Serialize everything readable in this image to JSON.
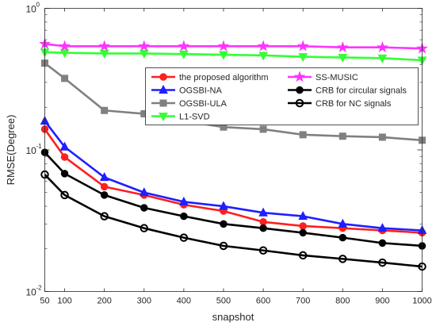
{
  "chart_data": {
    "type": "line",
    "title": "",
    "xlabel": "snapshot",
    "ylabel": "RMSE(Degree)",
    "yscale": "log",
    "xlim": [
      50,
      1000
    ],
    "ylim": [
      0.01,
      1
    ],
    "grid": false,
    "legend_placement": "upper-right",
    "x": [
      50,
      100,
      200,
      300,
      400,
      500,
      600,
      700,
      800,
      900,
      1000
    ],
    "x_ticks": [
      "50",
      "100",
      "200",
      "300",
      "400",
      "500",
      "600",
      "700",
      "800",
      "900",
      "1000"
    ],
    "y_ticks": [
      {
        "value": 0.01,
        "base": "10",
        "exp": "-2"
      },
      {
        "value": 0.1,
        "base": "10",
        "exp": "-1"
      },
      {
        "value": 1,
        "base": "10",
        "exp": "0"
      }
    ],
    "series": [
      {
        "name": "the proposed algorithm",
        "color": "#ff1f1f",
        "marker": "circle-filled",
        "values": [
          0.14,
          0.089,
          0.055,
          0.048,
          0.041,
          0.037,
          0.031,
          0.029,
          0.028,
          0.027,
          0.026
        ]
      },
      {
        "name": "SS-MUSIC",
        "color": "#ff33ff",
        "marker": "star",
        "values": [
          0.56,
          0.54,
          0.54,
          0.54,
          0.54,
          0.54,
          0.54,
          0.54,
          0.53,
          0.53,
          0.52
        ]
      },
      {
        "name": "OGSBI-NA",
        "color": "#1f1fff",
        "marker": "triangle-up",
        "values": [
          0.16,
          0.105,
          0.064,
          0.05,
          0.043,
          0.04,
          0.036,
          0.034,
          0.03,
          0.028,
          0.027
        ]
      },
      {
        "name": "CRB for circular signals",
        "color": "#000000",
        "marker": "circle-filled",
        "values": [
          0.096,
          0.068,
          0.048,
          0.039,
          0.034,
          0.03,
          0.028,
          0.026,
          0.024,
          0.022,
          0.021
        ]
      },
      {
        "name": "OGSBI-ULA",
        "color": "#808080",
        "marker": "square",
        "values": [
          0.41,
          0.32,
          0.19,
          0.18,
          0.16,
          0.145,
          0.14,
          0.128,
          0.125,
          0.123,
          0.117
        ]
      },
      {
        "name": "CRB for NC signals",
        "color": "#000000",
        "marker": "circle-open",
        "values": [
          0.067,
          0.048,
          0.034,
          0.028,
          0.024,
          0.021,
          0.0195,
          0.018,
          0.017,
          0.016,
          0.015
        ]
      },
      {
        "name": "L1-SVD",
        "color": "#33ff33",
        "marker": "triangle-down",
        "values": [
          0.49,
          0.485,
          0.48,
          0.48,
          0.475,
          0.47,
          0.465,
          0.455,
          0.45,
          0.445,
          0.43
        ]
      }
    ]
  }
}
